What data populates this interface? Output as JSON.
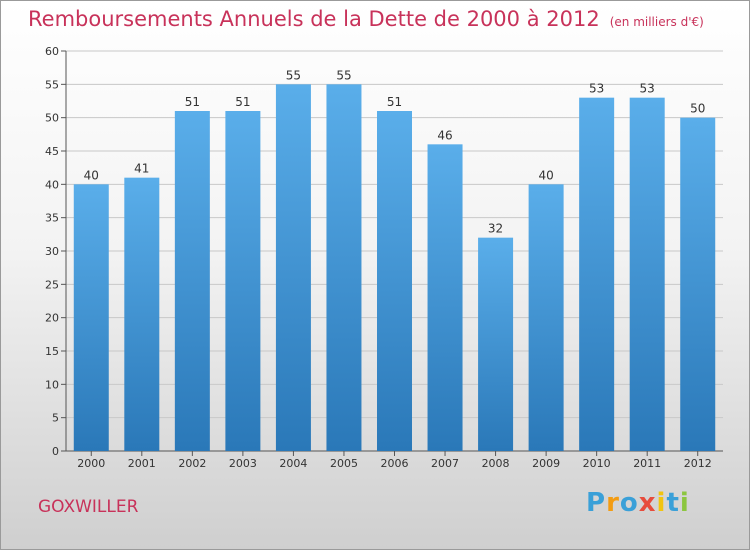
{
  "title": "Remboursements Annuels de la Dette de 2000 à 2012",
  "unit": "(en milliers d'€)",
  "commune": "GOXWILLER",
  "logo": {
    "text": "Proxiti",
    "letters": [
      {
        "ch": "P",
        "color": "#3aa0d8"
      },
      {
        "ch": "r",
        "color": "#f39c12"
      },
      {
        "ch": "o",
        "color": "#3aa0d8"
      },
      {
        "ch": "x",
        "color": "#e74c3c"
      },
      {
        "ch": "i",
        "color": "#f1c40f"
      },
      {
        "ch": "t",
        "color": "#3aa0d8"
      },
      {
        "ch": "i",
        "color": "#8cc63f"
      }
    ]
  },
  "colors": {
    "bar_top": "#5aaeea",
    "bar_bottom": "#2a78b8",
    "grid": "#c8c8c8",
    "title": "#c8325a"
  },
  "chart_data": {
    "type": "bar",
    "title": "Remboursements Annuels de la Dette de 2000 à 2012",
    "xlabel": "",
    "ylabel": "",
    "categories": [
      "2000",
      "2001",
      "2002",
      "2003",
      "2004",
      "2005",
      "2006",
      "2007",
      "2008",
      "2009",
      "2010",
      "2011",
      "2012"
    ],
    "values": [
      40,
      41,
      51,
      51,
      55,
      55,
      51,
      46,
      32,
      40,
      53,
      53,
      50
    ],
    "ylim": [
      0,
      60
    ],
    "yticks": [
      0,
      5,
      10,
      15,
      20,
      25,
      30,
      35,
      40,
      45,
      50,
      55,
      60
    ],
    "grid": true,
    "legend": "none"
  }
}
